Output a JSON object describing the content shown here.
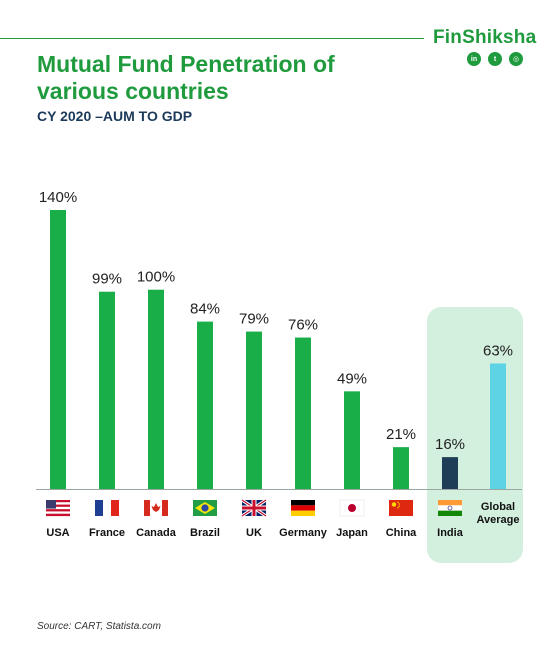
{
  "brand": {
    "name": "FinShiksha",
    "socials": [
      {
        "icon": "linkedin-icon",
        "glyph": "in"
      },
      {
        "icon": "twitter-icon",
        "glyph": "t"
      },
      {
        "icon": "instagram-icon",
        "glyph": "◎"
      }
    ]
  },
  "title": "Mutual Fund Penetration of various countries",
  "subtitle": "CY 2020 –AUM TO GDP",
  "source": "Source: CART, Statista.com",
  "colors": {
    "green": "#1aae48",
    "india": "#1e3d57",
    "average": "#5ed3e6",
    "highlight": "#d3efdd"
  },
  "chart_data": {
    "type": "bar",
    "title": "Mutual Fund Penetration of various countries",
    "subtitle": "CY 2020 –AUM TO GDP",
    "unit": "%",
    "categories": [
      "USA",
      "France",
      "Canada",
      "Brazil",
      "UK",
      "Germany",
      "Japan",
      "China",
      "India",
      "Global Average"
    ],
    "values": [
      140,
      99,
      100,
      84,
      79,
      76,
      49,
      21,
      16,
      63
    ],
    "labels": [
      "140%",
      "99%",
      "100%",
      "84%",
      "79%",
      "76%",
      "49%",
      "21%",
      "16%",
      "63%"
    ],
    "flags": [
      "usa-flag",
      "france-flag",
      "canada-flag",
      "brazil-flag",
      "uk-flag",
      "germany-flag",
      "japan-flag",
      "china-flag",
      "india-flag",
      "none"
    ],
    "bar_colors": [
      "#1aae48",
      "#1aae48",
      "#1aae48",
      "#1aae48",
      "#1aae48",
      "#1aae48",
      "#1aae48",
      "#1aae48",
      "#1e3d57",
      "#5ed3e6"
    ],
    "ylim": [
      0,
      140
    ],
    "grid": false,
    "legend": "none",
    "highlighted": [
      "India",
      "Global Average"
    ]
  }
}
